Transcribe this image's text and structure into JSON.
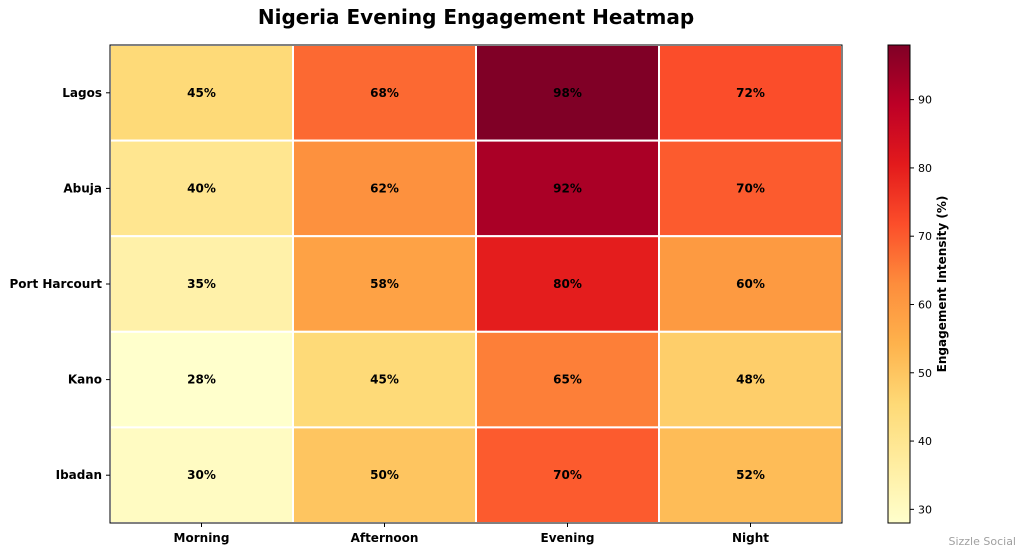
{
  "chart_data": {
    "type": "heatmap",
    "title": "Nigeria Evening Engagement Heatmap",
    "rows": [
      "Lagos",
      "Abuja",
      "Port Harcourt",
      "Kano",
      "Ibadan"
    ],
    "columns": [
      "Morning",
      "Afternoon",
      "Evening",
      "Night"
    ],
    "values": [
      [
        45,
        68,
        98,
        72
      ],
      [
        40,
        62,
        92,
        70
      ],
      [
        35,
        58,
        80,
        60
      ],
      [
        28,
        45,
        65,
        48
      ],
      [
        30,
        50,
        70,
        52
      ]
    ],
    "value_suffix": "%",
    "colorbar": {
      "label": "Engagement Intensity (%)",
      "range": [
        28,
        98
      ],
      "ticks": [
        30,
        40,
        50,
        60,
        70,
        80,
        90
      ],
      "colormap": "YlOrRd"
    }
  },
  "watermark": "Sizzle Social"
}
